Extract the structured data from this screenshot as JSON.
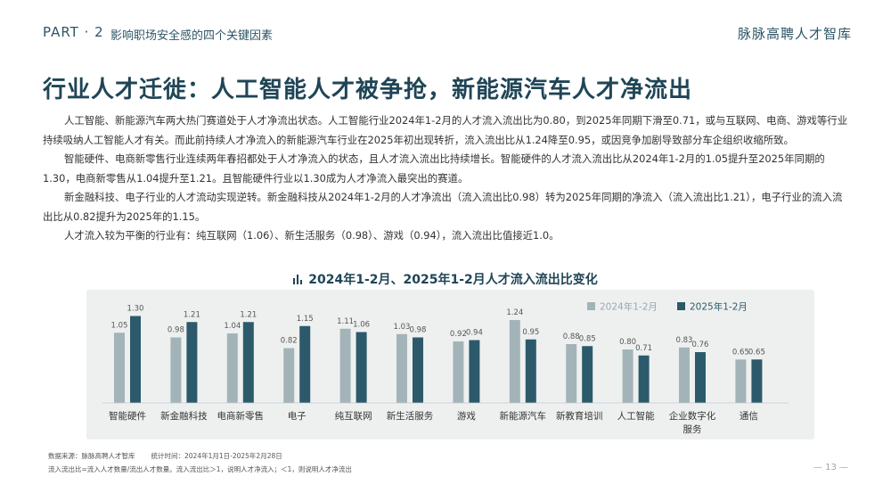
{
  "header": {
    "part": "PART · 2",
    "subtitle": "影响职场安全感的四个关键因素",
    "brand": "脉脉高聘人才智库"
  },
  "title": "行业人才迁徙：人工智能人才被争抢，新能源汽车人才净流出",
  "paragraphs": [
    "人工智能、新能源汽车两大热门赛道处于人才净流出状态。人工智能行业2024年1-2月的人才流入流出比为0.80，到2025年同期下滑至0.71，或与互联网、电商、游戏等行业持续吸纳人工智能人才有关。而此前持续人才净流入的新能源汽车行业在2025年初出现转折，流入流出比从1.24降至0.95，或因竞争加剧导致部分车企组织收缩所致。",
    "智能硬件、电商新零售行业连续两年春招都处于人才净流入的状态，且人才流入流出比持续增长。智能硬件的人才流入流出比从2024年1-2月的1.05提升至2025年同期的1.30，电商新零售从1.04提升至1.21。且智能硬件行业以1.30成为人才净流入最突出的赛道。",
    "新金融科技、电子行业的人才流动实现逆转。新金融科技从2024年1-2月的人才净流出（流入流出比0.98）转为2025年同期的净流入（流入流出比1.21），电子行业的流入流出比从0.82提升为2025年的1.15。",
    "人才流入较为平衡的行业有：纯互联网（1.06）、新生活服务（0.98）、游戏（0.94），流入流出比值接近1.0。"
  ],
  "chart_title": "2024年1-2月、2025年1-2月人才流入流出比变化",
  "chart_data": {
    "type": "bar",
    "title": "2024年1-2月、2025年1-2月人才流入流出比变化",
    "categories": [
      "智能硬件",
      "新金融科技",
      "电商新零售",
      "电子",
      "纯互联网",
      "新生活服务",
      "游戏",
      "新能源汽车",
      "新教育培训",
      "人工智能",
      "企业数字化服务",
      "通信"
    ],
    "series": [
      {
        "name": "2024年1-2月",
        "values": [
          1.05,
          0.98,
          1.04,
          0.82,
          1.11,
          1.03,
          0.92,
          1.24,
          0.88,
          0.8,
          0.83,
          0.65
        ],
        "color": "#a3b4b9"
      },
      {
        "name": "2025年1-2月",
        "values": [
          1.3,
          1.21,
          1.21,
          1.15,
          1.06,
          0.98,
          0.94,
          0.95,
          0.85,
          0.71,
          0.76,
          0.65
        ],
        "color": "#2c5a6b"
      }
    ],
    "xlabel": "",
    "ylabel": "",
    "ylim": [
      0,
      1.4
    ],
    "legend": "top-right",
    "grid": false
  },
  "footnotes": {
    "source": "数据来源：脉脉高聘人才智库",
    "period": "统计时间：2024年1月1日-2025年2月28日",
    "definition": "流入流出比=流入人才数量/流出人才数量。流入流出比＞1，说明人才净流入；＜1，则说明人才净流出"
  },
  "page_number": "— 13 —"
}
